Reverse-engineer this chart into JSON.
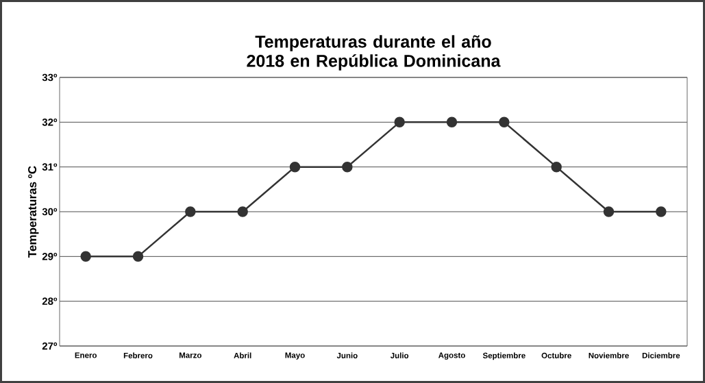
{
  "chart_data": {
    "type": "line",
    "title": "Temperaturas durante el año 2018 en República Dominicana",
    "ylabel": "Temperaturas ºC",
    "categories": [
      "Enero",
      "Febrero",
      "Marzo",
      "Abril",
      "Mayo",
      "Junio",
      "Julio",
      "Agosto",
      "Septiembre",
      "Octubre",
      "Noviembre",
      "Diciembre"
    ],
    "values": [
      29,
      29,
      30,
      30,
      31,
      31,
      32,
      32,
      32,
      31,
      30,
      30
    ],
    "color": "#333333",
    "marker": "circle",
    "line_style": "solid",
    "grid": "y",
    "ylim": [
      27,
      33
    ],
    "yticks": [
      {
        "value": 27,
        "label": "27º"
      },
      {
        "value": 28,
        "label": "28º"
      },
      {
        "value": 29,
        "label": "29º"
      },
      {
        "value": 30,
        "label": "30º"
      },
      {
        "value": 31,
        "label": "31º"
      },
      {
        "value": 32,
        "label": "32º"
      },
      {
        "value": 33,
        "label": "33º"
      }
    ]
  }
}
